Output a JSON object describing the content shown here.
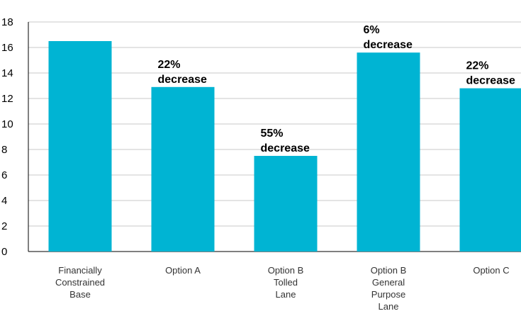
{
  "chart_data": {
    "type": "bar",
    "title": "",
    "xlabel": "",
    "ylabel": "",
    "ylim": [
      0,
      18
    ],
    "yticks": [
      0,
      2,
      4,
      6,
      8,
      10,
      12,
      14,
      16,
      18
    ],
    "grid": true,
    "legend": "none",
    "bar_color": "#00B4D3",
    "categories": [
      [
        "Financially",
        "Constrained",
        "Base"
      ],
      [
        "Option A"
      ],
      [
        "Option B",
        "Tolled",
        "Lane"
      ],
      [
        "Option B",
        "General",
        "Purpose",
        "Lane"
      ],
      [
        "Option C"
      ]
    ],
    "values": [
      16.5,
      12.9,
      7.5,
      15.6,
      12.8
    ],
    "annotations": [
      null,
      [
        "22%",
        "decrease"
      ],
      [
        "55%",
        "decrease"
      ],
      [
        "6%",
        "decrease"
      ],
      [
        "22%",
        "decrease"
      ]
    ]
  }
}
